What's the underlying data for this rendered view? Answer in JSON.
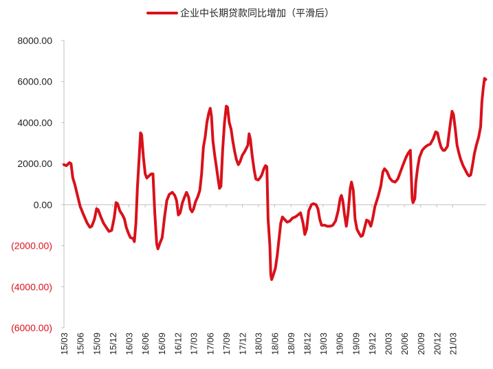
{
  "chart_data": {
    "type": "line",
    "legend_position": "top-center",
    "grid": false,
    "colors": {
      "series": "#d9111b",
      "negative_tick": "#d9111b",
      "positive_tick": "#222222",
      "axis": "#bfbfbf"
    },
    "y_ticks": [
      {
        "value": 8000,
        "label": "8000.00"
      },
      {
        "value": 6000,
        "label": "6000.00"
      },
      {
        "value": 4000,
        "label": "4000.00"
      },
      {
        "value": 2000,
        "label": "2000.00"
      },
      {
        "value": 0,
        "label": "0.00"
      },
      {
        "value": -2000,
        "label": "(2000.00)"
      },
      {
        "value": -4000,
        "label": "(4000.00)"
      },
      {
        "value": -6000,
        "label": "(6000.00)"
      }
    ],
    "ylim": [
      -6000,
      8000
    ],
    "x_tick_labels": [
      "15/03",
      "15/06",
      "15/09",
      "15/12",
      "16/03",
      "16/06",
      "16/09",
      "16/12",
      "17/03",
      "17/06",
      "17/09",
      "17/12",
      "18/03",
      "18/06",
      "18/09",
      "18/12",
      "19/03",
      "19/06",
      "19/09",
      "19/12",
      "20/03",
      "20/06",
      "20/09",
      "20/12",
      "21/03"
    ],
    "series": [
      {
        "name": "企业中长期贷款同比增加（平滑后）",
        "points": [
          [
            "2015-03-01",
            1950
          ],
          [
            "2015-03-15",
            1900
          ],
          [
            "2015-04-01",
            2050
          ],
          [
            "2015-04-10",
            2000
          ],
          [
            "2015-04-20",
            1300
          ],
          [
            "2015-05-01",
            1000
          ],
          [
            "2015-05-15",
            500
          ],
          [
            "2015-06-01",
            -100
          ],
          [
            "2015-06-20",
            -500
          ],
          [
            "2015-07-10",
            -900
          ],
          [
            "2015-07-25",
            -1100
          ],
          [
            "2015-08-05",
            -1050
          ],
          [
            "2015-08-20",
            -700
          ],
          [
            "2015-09-01",
            -200
          ],
          [
            "2015-09-10",
            -250
          ],
          [
            "2015-09-25",
            -600
          ],
          [
            "2015-10-10",
            -900
          ],
          [
            "2015-10-25",
            -1100
          ],
          [
            "2015-11-10",
            -1300
          ],
          [
            "2015-11-25",
            -1250
          ],
          [
            "2015-12-10",
            -600
          ],
          [
            "2015-12-20",
            100
          ],
          [
            "2015-12-28",
            50
          ],
          [
            "2016-01-10",
            -300
          ],
          [
            "2016-01-25",
            -500
          ],
          [
            "2016-02-05",
            -700
          ],
          [
            "2016-02-15",
            -1100
          ],
          [
            "2016-02-28",
            -1400
          ],
          [
            "2016-03-10",
            -1600
          ],
          [
            "2016-03-25",
            -1650
          ],
          [
            "2016-04-01",
            -1800
          ],
          [
            "2016-04-10",
            -900
          ],
          [
            "2016-04-18",
            800
          ],
          [
            "2016-04-28",
            2300
          ],
          [
            "2016-05-06",
            3500
          ],
          [
            "2016-05-12",
            3400
          ],
          [
            "2016-05-22",
            2300
          ],
          [
            "2016-06-01",
            1500
          ],
          [
            "2016-06-10",
            1300
          ],
          [
            "2016-06-22",
            1400
          ],
          [
            "2016-07-05",
            1500
          ],
          [
            "2016-07-15",
            1500
          ],
          [
            "2016-07-25",
            -400
          ],
          [
            "2016-08-05",
            -1900
          ],
          [
            "2016-08-12",
            -2150
          ],
          [
            "2016-08-22",
            -1900
          ],
          [
            "2016-09-05",
            -1600
          ],
          [
            "2016-09-18",
            -600
          ],
          [
            "2016-10-01",
            200
          ],
          [
            "2016-10-15",
            500
          ],
          [
            "2016-11-01",
            600
          ],
          [
            "2016-11-15",
            450
          ],
          [
            "2016-11-25",
            200
          ],
          [
            "2016-12-05",
            -500
          ],
          [
            "2016-12-15",
            -400
          ],
          [
            "2016-12-28",
            100
          ],
          [
            "2017-01-10",
            400
          ],
          [
            "2017-01-20",
            600
          ],
          [
            "2017-02-01",
            350
          ],
          [
            "2017-02-10",
            -200
          ],
          [
            "2017-02-20",
            -350
          ],
          [
            "2017-03-01",
            -200
          ],
          [
            "2017-03-12",
            150
          ],
          [
            "2017-03-25",
            400
          ],
          [
            "2017-04-05",
            700
          ],
          [
            "2017-04-15",
            1500
          ],
          [
            "2017-04-25",
            2800
          ],
          [
            "2017-05-05",
            3300
          ],
          [
            "2017-05-15",
            4000
          ],
          [
            "2017-05-25",
            4450
          ],
          [
            "2017-06-03",
            4700
          ],
          [
            "2017-06-10",
            4300
          ],
          [
            "2017-06-18",
            3100
          ],
          [
            "2017-06-28",
            2400
          ],
          [
            "2017-07-08",
            1800
          ],
          [
            "2017-07-18",
            1200
          ],
          [
            "2017-07-25",
            800
          ],
          [
            "2017-08-02",
            900
          ],
          [
            "2017-08-12",
            2700
          ],
          [
            "2017-08-22",
            4000
          ],
          [
            "2017-09-01",
            4800
          ],
          [
            "2017-09-08",
            4750
          ],
          [
            "2017-09-18",
            4000
          ],
          [
            "2017-09-28",
            3700
          ],
          [
            "2017-10-08",
            3100
          ],
          [
            "2017-10-18",
            2600
          ],
          [
            "2017-10-28",
            2200
          ],
          [
            "2017-11-08",
            1950
          ],
          [
            "2017-11-18",
            2100
          ],
          [
            "2017-11-30",
            2400
          ],
          [
            "2017-12-15",
            2600
          ],
          [
            "2018-01-01",
            2900
          ],
          [
            "2018-01-08",
            3450
          ],
          [
            "2018-01-15",
            3200
          ],
          [
            "2018-01-25",
            2400
          ],
          [
            "2018-02-05",
            1700
          ],
          [
            "2018-02-15",
            1250
          ],
          [
            "2018-02-28",
            1200
          ],
          [
            "2018-03-10",
            1300
          ],
          [
            "2018-03-20",
            1450
          ],
          [
            "2018-04-01",
            1750
          ],
          [
            "2018-04-10",
            1900
          ],
          [
            "2018-04-18",
            1850
          ],
          [
            "2018-04-25",
            -700
          ],
          [
            "2018-05-05",
            -2000
          ],
          [
            "2018-05-10",
            -3400
          ],
          [
            "2018-05-15",
            -3650
          ],
          [
            "2018-05-25",
            -3400
          ],
          [
            "2018-06-05",
            -3100
          ],
          [
            "2018-06-15",
            -2500
          ],
          [
            "2018-06-25",
            -1700
          ],
          [
            "2018-07-05",
            -900
          ],
          [
            "2018-07-15",
            -600
          ],
          [
            "2018-07-25",
            -700
          ],
          [
            "2018-08-10",
            -850
          ],
          [
            "2018-08-25",
            -800
          ],
          [
            "2018-09-10",
            -650
          ],
          [
            "2018-09-25",
            -600
          ],
          [
            "2018-10-10",
            -500
          ],
          [
            "2018-10-25",
            -400
          ],
          [
            "2018-11-08",
            -900
          ],
          [
            "2018-11-18",
            -1450
          ],
          [
            "2018-11-28",
            -1200
          ],
          [
            "2018-12-10",
            -300
          ],
          [
            "2018-12-25",
            0
          ],
          [
            "2019-01-05",
            50
          ],
          [
            "2019-01-20",
            0
          ],
          [
            "2019-01-31",
            -200
          ],
          [
            "2019-02-10",
            -700
          ],
          [
            "2019-02-20",
            -1000
          ],
          [
            "2019-03-10",
            -1000
          ],
          [
            "2019-03-25",
            -1050
          ],
          [
            "2019-04-10",
            -1050
          ],
          [
            "2019-04-25",
            -1000
          ],
          [
            "2019-05-10",
            -800
          ],
          [
            "2019-05-25",
            -300
          ],
          [
            "2019-06-05",
            300
          ],
          [
            "2019-06-12",
            450
          ],
          [
            "2019-06-20",
            200
          ],
          [
            "2019-06-30",
            -500
          ],
          [
            "2019-07-10",
            -1050
          ],
          [
            "2019-07-20",
            -400
          ],
          [
            "2019-08-01",
            800
          ],
          [
            "2019-08-08",
            1100
          ],
          [
            "2019-08-18",
            700
          ],
          [
            "2019-08-28",
            -700
          ],
          [
            "2019-09-08",
            -1200
          ],
          [
            "2019-09-20",
            -1400
          ],
          [
            "2019-10-01",
            -1550
          ],
          [
            "2019-10-10",
            -1500
          ],
          [
            "2019-10-22",
            -1100
          ],
          [
            "2019-11-01",
            -750
          ],
          [
            "2019-11-12",
            -800
          ],
          [
            "2019-11-25",
            -1050
          ],
          [
            "2019-12-05",
            -700
          ],
          [
            "2019-12-18",
            -100
          ],
          [
            "2020-01-05",
            400
          ],
          [
            "2020-01-20",
            900
          ],
          [
            "2020-02-01",
            1600
          ],
          [
            "2020-02-10",
            1750
          ],
          [
            "2020-02-25",
            1600
          ],
          [
            "2020-03-10",
            1300
          ],
          [
            "2020-03-25",
            1150
          ],
          [
            "2020-04-10",
            1100
          ],
          [
            "2020-04-25",
            1250
          ],
          [
            "2020-05-10",
            1600
          ],
          [
            "2020-05-25",
            1950
          ],
          [
            "2020-06-10",
            2300
          ],
          [
            "2020-06-22",
            2500
          ],
          [
            "2020-07-05",
            2650
          ],
          [
            "2020-07-15",
            300
          ],
          [
            "2020-07-20",
            100
          ],
          [
            "2020-07-30",
            300
          ],
          [
            "2020-08-05",
            1100
          ],
          [
            "2020-08-15",
            1800
          ],
          [
            "2020-08-25",
            2300
          ],
          [
            "2020-09-10",
            2650
          ],
          [
            "2020-09-25",
            2800
          ],
          [
            "2020-10-10",
            2900
          ],
          [
            "2020-10-25",
            2950
          ],
          [
            "2020-11-10",
            3200
          ],
          [
            "2020-11-25",
            3550
          ],
          [
            "2020-12-05",
            3500
          ],
          [
            "2020-12-15",
            3100
          ],
          [
            "2020-12-25",
            2800
          ],
          [
            "2021-01-05",
            2650
          ],
          [
            "2021-01-15",
            2650
          ],
          [
            "2021-01-30",
            2850
          ],
          [
            "2021-02-10",
            3600
          ],
          [
            "2021-02-18",
            4150
          ],
          [
            "2021-02-25",
            4550
          ],
          [
            "2021-03-05",
            4400
          ],
          [
            "2021-03-15",
            3700
          ],
          [
            "2021-03-25",
            2900
          ],
          [
            "2021-04-05",
            2500
          ],
          [
            "2021-04-15",
            2200
          ],
          [
            "2021-04-28",
            1900
          ],
          [
            "2021-05-10",
            1700
          ],
          [
            "2021-05-22",
            1500
          ],
          [
            "2021-06-01",
            1400
          ],
          [
            "2021-06-10",
            1450
          ],
          [
            "2021-06-20",
            1900
          ],
          [
            "2021-07-01",
            2500
          ],
          [
            "2021-07-12",
            2900
          ],
          [
            "2021-07-25",
            3300
          ],
          [
            "2021-08-05",
            3800
          ],
          [
            "2021-08-12",
            5000
          ],
          [
            "2021-08-20",
            5700
          ],
          [
            "2021-08-27",
            6150
          ],
          [
            "2021-09-03",
            6100
          ]
        ]
      }
    ]
  }
}
